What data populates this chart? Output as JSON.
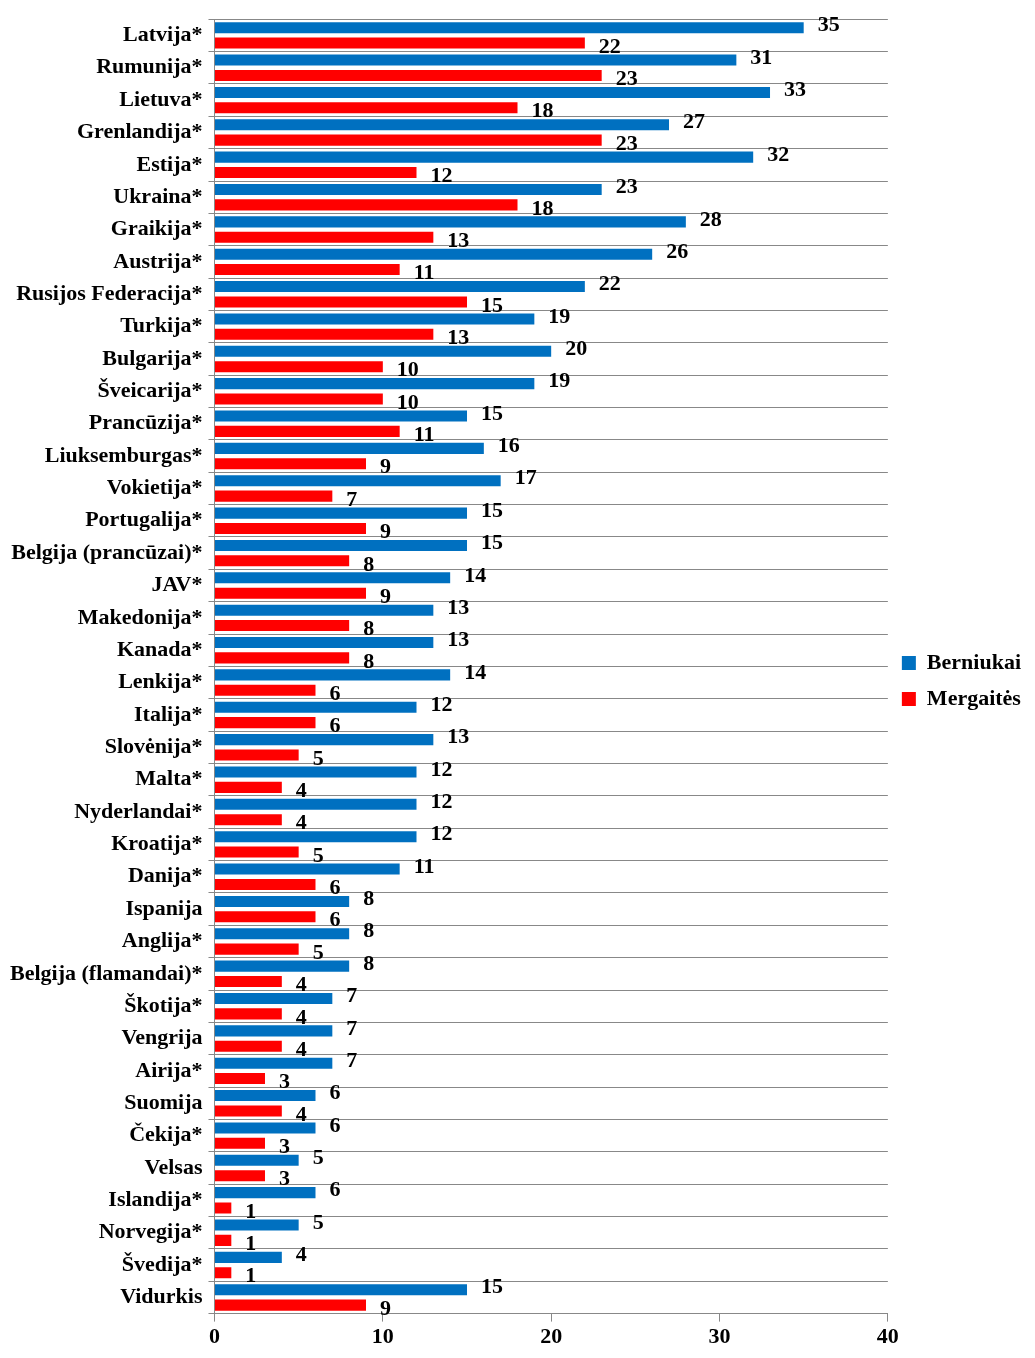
{
  "chart_data": {
    "type": "bar",
    "orientation": "horizontal",
    "categories": [
      "Latvija*",
      "Rumunija*",
      "Lietuva*",
      "Grenlandija*",
      "Estija*",
      "Ukraina*",
      "Graikija*",
      "Austrija*",
      "Rusijos Federacija*",
      "Turkija*",
      "Bulgarija*",
      "Šveicarija*",
      "Prancūzija*",
      "Liuksemburgas*",
      "Vokietija*",
      "Portugalija*",
      "Belgija (prancūzai)*",
      "JAV*",
      "Makedonija*",
      "Kanada*",
      "Lenkija*",
      "Italija*",
      "Slovėnija*",
      "Malta*",
      "Nyderlandai*",
      "Kroatija*",
      "Danija*",
      "Ispanija",
      "Anglija*",
      "Belgija (flamandai)*",
      "Škotija*",
      "Vengrija",
      "Airija*",
      "Suomija",
      "Čekija*",
      "Velsas",
      "Islandija*",
      "Norvegija*",
      "Švedija*",
      "Vidurkis"
    ],
    "series": [
      {
        "name": "Berniukai",
        "color": "#0070c0",
        "values": [
          35,
          31,
          33,
          27,
          32,
          23,
          28,
          26,
          22,
          19,
          20,
          19,
          15,
          16,
          17,
          15,
          15,
          14,
          13,
          13,
          14,
          12,
          13,
          12,
          12,
          12,
          11,
          8,
          8,
          8,
          7,
          7,
          7,
          6,
          6,
          5,
          6,
          5,
          4,
          15
        ]
      },
      {
        "name": "Mergaitės",
        "color": "#ff0000",
        "values": [
          22,
          23,
          18,
          23,
          12,
          18,
          13,
          11,
          15,
          13,
          10,
          10,
          11,
          9,
          7,
          9,
          8,
          9,
          8,
          8,
          6,
          6,
          5,
          4,
          4,
          5,
          6,
          6,
          5,
          4,
          4,
          4,
          3,
          4,
          3,
          3,
          1,
          1,
          1,
          9
        ]
      }
    ],
    "xlim": [
      0,
      40
    ],
    "xticks": [
      0,
      10,
      20,
      30,
      40
    ],
    "grid": "y",
    "legend": "right",
    "data_labels": true
  }
}
